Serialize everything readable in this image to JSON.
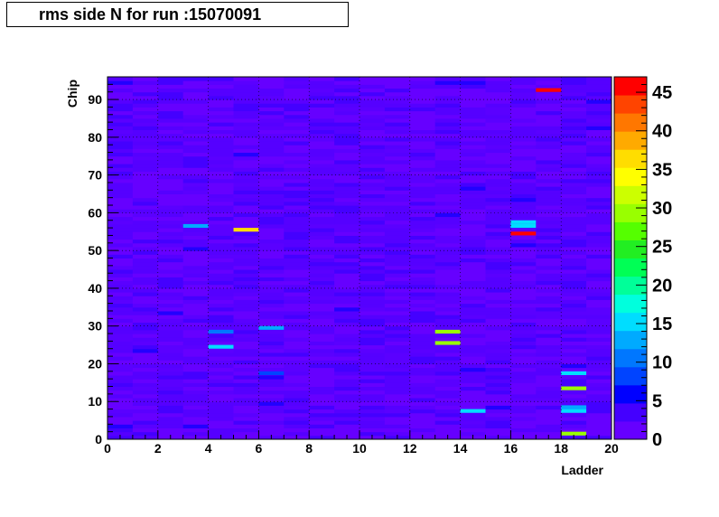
{
  "title": "rms side N for run :15070091",
  "chart_data": {
    "type": "heatmap",
    "xlabel": "Ladder",
    "ylabel": "Chip",
    "xlim": [
      0,
      20
    ],
    "ylim": [
      0,
      96
    ],
    "x_ticks": [
      0,
      2,
      4,
      6,
      8,
      10,
      12,
      14,
      16,
      18,
      20
    ],
    "y_ticks": [
      0,
      10,
      20,
      30,
      40,
      50,
      60,
      70,
      80,
      90
    ],
    "z_range": [
      0,
      47
    ],
    "palette_ticks": [
      0,
      5,
      10,
      15,
      20,
      25,
      30,
      35,
      40,
      45
    ],
    "palette_colors": [
      "#6600ff",
      "#4400ff",
      "#0000ff",
      "#0044ff",
      "#0077ff",
      "#00aaff",
      "#00ddff",
      "#00ffdd",
      "#00ff99",
      "#00ff55",
      "#22ee22",
      "#55ff00",
      "#99ff00",
      "#ccff00",
      "#ffff00",
      "#ffdd00",
      "#ffaa00",
      "#ff7700",
      "#ff4400",
      "#ff0000"
    ],
    "background_level": 2,
    "hot_cells": [
      {
        "ladder": 3,
        "chip": 56,
        "value": 14
      },
      {
        "ladder": 4,
        "chip": 28,
        "value": 11
      },
      {
        "ladder": 4,
        "chip": 24,
        "value": 15
      },
      {
        "ladder": 5,
        "chip": 55,
        "value": 37
      },
      {
        "ladder": 6,
        "chip": 29,
        "value": 12
      },
      {
        "ladder": 6,
        "chip": 17,
        "value": 9
      },
      {
        "ladder": 13,
        "chip": 28,
        "value": 30
      },
      {
        "ladder": 13,
        "chip": 25,
        "value": 29
      },
      {
        "ladder": 14,
        "chip": 7,
        "value": 15
      },
      {
        "ladder": 16,
        "chip": 57,
        "value": 16
      },
      {
        "ladder": 16,
        "chip": 56,
        "value": 16
      },
      {
        "ladder": 16,
        "chip": 54,
        "value": 45
      },
      {
        "ladder": 17,
        "chip": 92,
        "value": 46
      },
      {
        "ladder": 18,
        "chip": 17,
        "value": 15
      },
      {
        "ladder": 18,
        "chip": 13,
        "value": 30
      },
      {
        "ladder": 18,
        "chip": 8,
        "value": 14
      },
      {
        "ladder": 18,
        "chip": 7,
        "value": 15
      },
      {
        "ladder": 18,
        "chip": 1,
        "value": 30
      }
    ]
  }
}
